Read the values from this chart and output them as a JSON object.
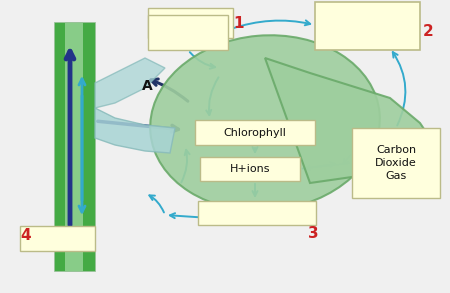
{
  "bg_color": "#f0f0f0",
  "stem_outer_color": "#6abf6a",
  "stem_inner_color": "#b8ddb8",
  "stem_dark_stripe": "#2255aa",
  "leaf_color": "#8ecc8e",
  "leaf_edge": "#6ab06a",
  "petiole_color": "#a8d8d8",
  "box_face": "#ffffdd",
  "box_edge": "#bbbb88",
  "arrow_cyan": "#33aacc",
  "arrow_dark_blue": "#223388",
  "arrow_A_color": "#111155",
  "label1": "1",
  "label2": "2",
  "label3": "3",
  "label4": "4",
  "labelA": "A",
  "box_chlorophyll": "Chlorophyll",
  "box_hions": "H+ions",
  "box_co2": "Carbon\nDioxide\nGas",
  "title_color": "#cc2222",
  "text_color": "#111111"
}
